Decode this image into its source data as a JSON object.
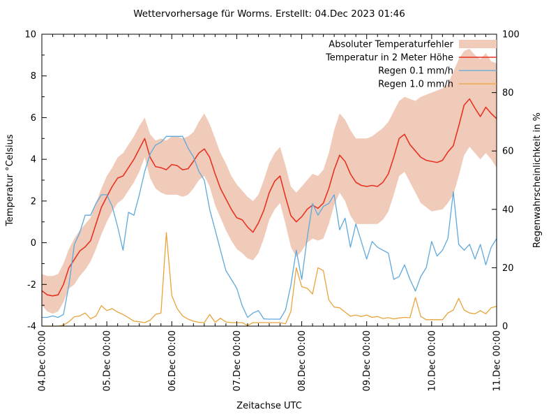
{
  "chart_data": {
    "type": "line",
    "title": "Wettervorhersage für Worms. Erstellt: 04.Dec 2023 01:46",
    "xlabel": "Zeitachse UTC",
    "ylabel_left": "Temperatur °Celsius",
    "ylabel_right": "Regenwahrscheinlichkeit in %",
    "x_tick_labels": [
      "04.Dec 00:00",
      "05.Dec 00:00",
      "06.Dec 00:00",
      "07.Dec 00:00",
      "08.Dec 00:00",
      "09.Dec 00:00",
      "10.Dec 00:00",
      "11.Dec 00:00"
    ],
    "y_left_ticks": [
      -4,
      -2,
      0,
      2,
      4,
      6,
      8,
      10
    ],
    "y_right_ticks": [
      0,
      20,
      40,
      60,
      80,
      100
    ],
    "ylim_left": [
      -4,
      10
    ],
    "ylim_right": [
      0,
      100
    ],
    "x_total_hours": 168,
    "step_hours": 2,
    "grid": false,
    "legend_position": "top-right-inside",
    "colors": {
      "band": "#f1cbb9",
      "temperature": "#e63323",
      "rain01": "#5ea9dc",
      "rain10": "#e8a33a",
      "axis": "#000000"
    },
    "legend": [
      {
        "label": "Absoluter Temperaturfehler",
        "swatch": "band",
        "color": "#f1cbb9",
        "width": 0
      },
      {
        "label": "Temperatur in 2 Meter Höhe",
        "swatch": "line",
        "color": "#e63323",
        "width": 1.6
      },
      {
        "label": "Regen 0.1 mm/h",
        "swatch": "line",
        "color": "#5ea9dc",
        "width": 1.3
      },
      {
        "label": "Regen 1.0 mm/h",
        "swatch": "line",
        "color": "#e8a33a",
        "width": 1.3
      }
    ],
    "series": [
      {
        "name": "temperature-error-band",
        "axis": "left",
        "type": "band",
        "color": "#f1cbb9",
        "upper": [
          -1.5,
          -1.6,
          -1.6,
          -1.5,
          -1.0,
          -0.3,
          0.2,
          0.6,
          0.9,
          1.2,
          1.9,
          2.6,
          3.2,
          3.6,
          4.1,
          4.3,
          4.7,
          5.1,
          5.6,
          6.0,
          5.2,
          4.9,
          5.0,
          4.9,
          5.1,
          5.1,
          5.0,
          5.1,
          5.3,
          5.8,
          6.2,
          5.7,
          5.0,
          4.3,
          3.8,
          3.2,
          2.8,
          2.5,
          2.2,
          2.0,
          2.3,
          3.0,
          3.8,
          4.3,
          4.6,
          3.7,
          2.7,
          2.4,
          2.7,
          3.0,
          3.3,
          3.2,
          3.5,
          4.3,
          5.4,
          6.2,
          5.9,
          5.4,
          5.0,
          5.0,
          5.0,
          5.1,
          5.3,
          5.5,
          5.8,
          6.3,
          6.8,
          7.0,
          6.9,
          6.8,
          7.0,
          7.1,
          7.2,
          7.3,
          7.4,
          7.6,
          8.2,
          8.8,
          9.2,
          9.3,
          9.0,
          8.8,
          9.1,
          8.7,
          8.6
        ],
        "lower": [
          -3.0,
          -3.3,
          -3.4,
          -3.3,
          -2.85,
          -2.2,
          -2.0,
          -1.6,
          -1.3,
          -0.9,
          -0.3,
          0.4,
          1.0,
          1.5,
          1.9,
          2.1,
          2.5,
          2.9,
          3.4,
          4.1,
          3.1,
          2.6,
          2.4,
          2.3,
          2.3,
          2.3,
          2.2,
          2.3,
          2.6,
          3.0,
          3.2,
          2.7,
          1.8,
          1.2,
          0.6,
          0.1,
          -0.3,
          -0.5,
          -0.75,
          -0.85,
          -0.5,
          0.2,
          1.1,
          1.6,
          1.9,
          0.9,
          -0.2,
          -0.7,
          -0.4,
          0.0,
          0.2,
          0.1,
          0.2,
          0.9,
          1.8,
          2.4,
          2.0,
          1.3,
          0.9,
          0.9,
          0.9,
          0.9,
          0.9,
          1.1,
          1.5,
          2.3,
          3.2,
          3.4,
          2.9,
          2.4,
          1.9,
          1.7,
          1.5,
          1.55,
          1.6,
          1.9,
          2.3,
          3.2,
          4.2,
          4.6,
          4.3,
          4.0,
          4.3,
          4.0,
          3.6
        ]
      },
      {
        "name": "temperature-line",
        "axis": "left",
        "type": "line",
        "color": "#e63323",
        "width": 1.6,
        "values": [
          -2.3,
          -2.5,
          -2.55,
          -2.5,
          -2.0,
          -1.2,
          -0.8,
          -0.4,
          -0.2,
          0.1,
          0.9,
          1.7,
          2.2,
          2.7,
          3.1,
          3.2,
          3.6,
          4.0,
          4.5,
          5.0,
          4.1,
          3.65,
          3.6,
          3.5,
          3.75,
          3.7,
          3.5,
          3.55,
          3.9,
          4.3,
          4.5,
          4.1,
          3.3,
          2.6,
          2.1,
          1.6,
          1.2,
          1.1,
          0.75,
          0.5,
          0.95,
          1.55,
          2.4,
          2.95,
          3.2,
          2.2,
          1.3,
          1.0,
          1.25,
          1.6,
          1.8,
          1.65,
          1.9,
          2.6,
          3.5,
          4.2,
          3.9,
          3.3,
          2.9,
          2.75,
          2.7,
          2.75,
          2.7,
          2.9,
          3.3,
          4.1,
          5.0,
          5.2,
          4.7,
          4.4,
          4.1,
          3.95,
          3.9,
          3.85,
          3.95,
          4.35,
          4.65,
          5.6,
          6.6,
          6.9,
          6.45,
          6.05,
          6.5,
          6.2,
          5.95
        ]
      },
      {
        "name": "rain-01-line",
        "axis": "right",
        "type": "line",
        "color": "#5ea9dc",
        "width": 1.3,
        "values": [
          3,
          3,
          3.5,
          3,
          4,
          14,
          28,
          32,
          38,
          38,
          42,
          45,
          45,
          41,
          34,
          26,
          39,
          38,
          45,
          53,
          59,
          62,
          63,
          65,
          65,
          65,
          65,
          61,
          58,
          53,
          50,
          40,
          33,
          26,
          19,
          16,
          13,
          7,
          3,
          4.5,
          5.3,
          2.5,
          2.4,
          2.4,
          2.4,
          5.5,
          14,
          26,
          16,
          30,
          42,
          38,
          41,
          42,
          45,
          33,
          37,
          27,
          35,
          29,
          23,
          29,
          27,
          26,
          25,
          16,
          17,
          21,
          16,
          12,
          17,
          20,
          29,
          24,
          26,
          30,
          46,
          28,
          26,
          28,
          23,
          28,
          21,
          27,
          30
        ]
      },
      {
        "name": "rain-10-line",
        "axis": "right",
        "type": "line",
        "color": "#e8a33a",
        "width": 1.3,
        "values": [
          0,
          0,
          0,
          0,
          0.3,
          1.5,
          3.2,
          3.5,
          4.5,
          2.5,
          3.5,
          7,
          5.3,
          6,
          4.8,
          4,
          2.9,
          1.7,
          1.5,
          1.2,
          2,
          4,
          4.5,
          32,
          10.5,
          6,
          3.5,
          2.4,
          1.7,
          1.3,
          1.2,
          4,
          1.3,
          2.7,
          1.4,
          1.2,
          1.2,
          1.2,
          0.2,
          1.2,
          1.2,
          1.2,
          1.2,
          1.2,
          1.2,
          0.8,
          5,
          20,
          13.5,
          13,
          11,
          20,
          19,
          9,
          6.5,
          6.3,
          4.8,
          3.4,
          3.8,
          3.3,
          3.8,
          3.0,
          3.3,
          2.6,
          2.9,
          2.5,
          2.8,
          3.0,
          2.9,
          9.8,
          3.3,
          2.2,
          2.2,
          2.2,
          2.2,
          4.5,
          5.5,
          9.5,
          5.5,
          4.5,
          4.2,
          5.3,
          4.2,
          6.3,
          6.8
        ]
      }
    ]
  }
}
